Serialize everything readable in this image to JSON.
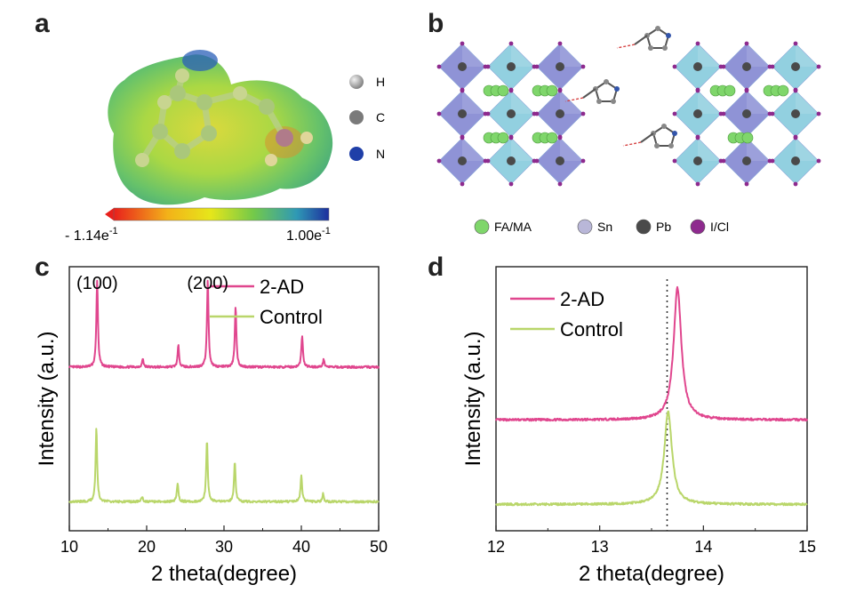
{
  "panels": {
    "a": {
      "label": "a",
      "legend": [
        {
          "text": "H",
          "color": "#f2f2f2"
        },
        {
          "text": "C",
          "color": "#7a7a7a"
        },
        {
          "text": "N",
          "color": "#1f3fa8"
        }
      ],
      "colorbar": {
        "min_label": "- 1.14e",
        "min_exp": "-1",
        "max_label": "1.00e",
        "max_exp": "-1"
      }
    },
    "b": {
      "label": "b",
      "legend": [
        {
          "text": "FA/MA",
          "color": "#7fd66b"
        },
        {
          "text": "Sn",
          "color": "#b9b7d8"
        },
        {
          "text": "Pb",
          "color": "#4a4a4a"
        },
        {
          "text": "I/Cl",
          "color": "#8e2a8e"
        }
      ]
    },
    "c": {
      "label": "c"
    },
    "d": {
      "label": "d"
    }
  },
  "colors": {
    "ad": "#e0468e",
    "control": "#b9d66a",
    "axis": "#222222"
  },
  "chart_data": [
    {
      "id": "c",
      "type": "line",
      "title": "",
      "xlabel": "2 theta(degree)",
      "ylabel": "Intensity (a.u.)",
      "xlim": [
        10,
        50
      ],
      "xticks": [
        10,
        20,
        30,
        40,
        50
      ],
      "annotations": [
        {
          "text": "(100)",
          "x": 13.6
        },
        {
          "text": "(200)",
          "x": 27.9
        }
      ],
      "series": [
        {
          "name": "2-AD",
          "baseline": 0.62,
          "peaks": [
            {
              "x": 13.6,
              "h": 0.33
            },
            {
              "x": 19.5,
              "h": 0.03
            },
            {
              "x": 24.1,
              "h": 0.08
            },
            {
              "x": 27.9,
              "h": 0.33
            },
            {
              "x": 31.5,
              "h": 0.23
            },
            {
              "x": 40.1,
              "h": 0.12
            },
            {
              "x": 42.9,
              "h": 0.03
            }
          ]
        },
        {
          "name": "Control",
          "baseline": 0.11,
          "peaks": [
            {
              "x": 13.5,
              "h": 0.28
            },
            {
              "x": 19.4,
              "h": 0.02
            },
            {
              "x": 24.0,
              "h": 0.07
            },
            {
              "x": 27.8,
              "h": 0.23
            },
            {
              "x": 31.4,
              "h": 0.15
            },
            {
              "x": 40.0,
              "h": 0.1
            },
            {
              "x": 42.8,
              "h": 0.03
            }
          ]
        }
      ]
    },
    {
      "id": "d",
      "type": "line",
      "title": "",
      "xlabel": "2 theta(degree)",
      "ylabel": "Intensity (a.u.)",
      "xlim": [
        12,
        15
      ],
      "xticks": [
        12,
        13,
        14,
        15
      ],
      "reference_line_x": 13.65,
      "series": [
        {
          "name": "2-AD",
          "baseline": 0.42,
          "peaks": [
            {
              "x": 13.75,
              "h": 0.5
            }
          ]
        },
        {
          "name": "Control",
          "baseline": 0.1,
          "peaks": [
            {
              "x": 13.66,
              "h": 0.35
            }
          ]
        }
      ]
    }
  ]
}
